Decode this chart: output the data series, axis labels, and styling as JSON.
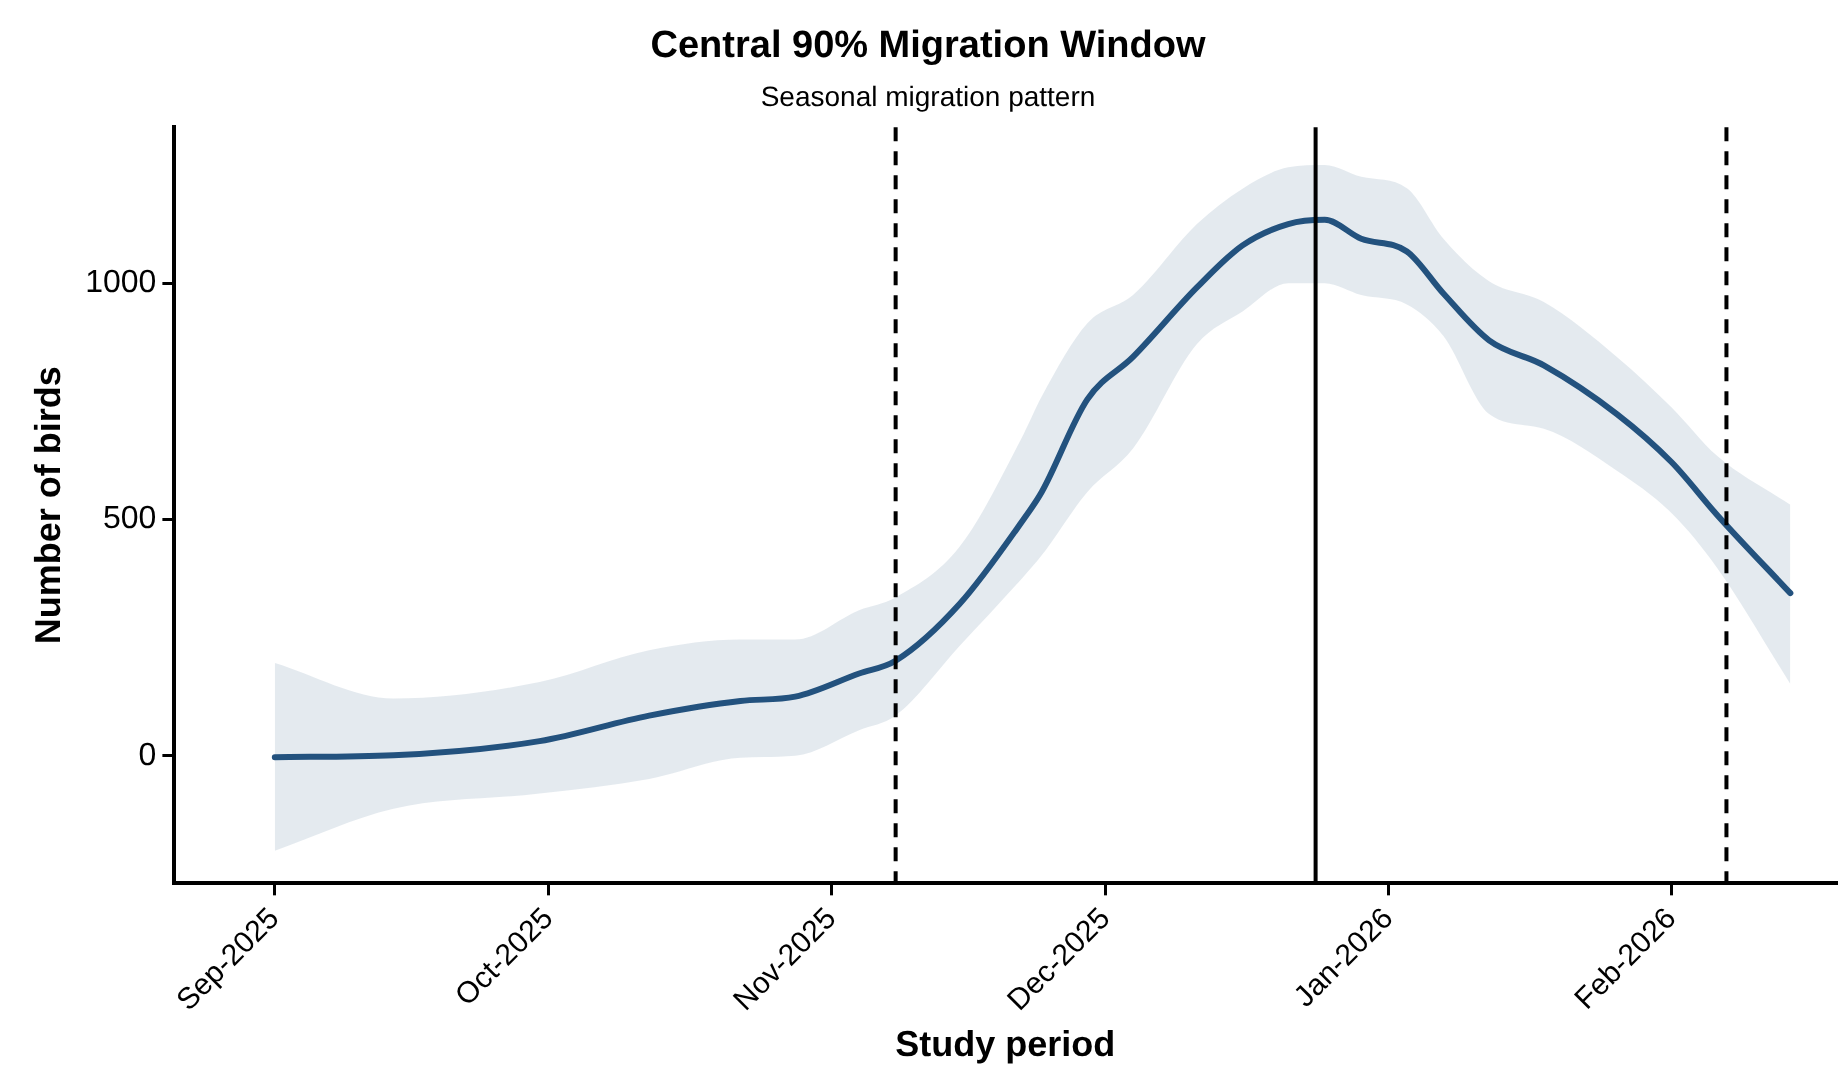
{
  "chart_data": {
    "type": "line",
    "title": "Central 90% Migration Window",
    "subtitle": "Seasonal migration pattern",
    "xlabel": "Study period",
    "ylabel": "Number of birds",
    "x": [
      "2025-09-01",
      "2025-09-14",
      "2025-09-30",
      "2025-10-12",
      "2025-10-22",
      "2025-10-28",
      "2025-11-04",
      "2025-11-08",
      "2025-11-15",
      "2025-11-22",
      "2025-11-24",
      "2025-11-29",
      "2025-12-04",
      "2025-12-11",
      "2025-12-16",
      "2025-12-21",
      "2025-12-25",
      "2025-12-29",
      "2026-01-03",
      "2026-01-07",
      "2026-01-12",
      "2026-01-18",
      "2026-01-26",
      "2026-02-01",
      "2026-02-06",
      "2026-02-14"
    ],
    "series": [
      {
        "color": "#24527f",
        "values": [
          -3,
          1,
          31,
          85,
          116,
          125,
          174,
          201,
          321,
          500,
          558,
          754,
          844,
          991,
          1080,
          1125,
          1134,
          1094,
          1067,
          978,
          879,
          826,
          723,
          621,
          509,
          344
        ],
        "lower": [
          -201,
          -112,
          -80,
          -49,
          -4,
          0,
          54,
          85,
          232,
          379,
          424,
          558,
          650,
          871,
          940,
          1000,
          1000,
          975,
          955,
          888,
          723,
          692,
          603,
          513,
          397,
          152
        ],
        "upper": [
          196,
          121,
          156,
          223,
          246,
          246,
          308,
          335,
          442,
          680,
          760,
          915,
          975,
          1125,
          1200,
          1245,
          1250,
          1225,
          1201,
          1094,
          1004,
          960,
          844,
          737,
          634,
          531
        ]
      }
    ],
    "xlim": [
      "2025-08-21",
      "2026-02-19"
    ],
    "xticks": [
      {
        "value": "2025-09-01",
        "label": "Sep-2025"
      },
      {
        "value": "2025-10-01",
        "label": "Oct-2025"
      },
      {
        "value": "2025-11-01",
        "label": "Nov-2025"
      },
      {
        "value": "2025-12-01",
        "label": "Dec-2025"
      },
      {
        "value": "2026-01-01",
        "label": "Jan-2026"
      },
      {
        "value": "2026-02-01",
        "label": "Feb-2026"
      }
    ],
    "ylim": [
      -270,
      1330
    ],
    "yticks": [
      0,
      500,
      1000
    ],
    "ref_lines": [
      {
        "axis": "x",
        "value": "2025-11-08",
        "color": "#000000",
        "line_style": "dashed"
      },
      {
        "axis": "x",
        "value": "2025-12-24",
        "color": "#000000",
        "line_style": "solid"
      },
      {
        "axis": "x",
        "value": "2026-02-07",
        "color": "#000000",
        "line_style": "dashed"
      }
    ],
    "grid": false,
    "legend": false,
    "marker": "none",
    "line_style": "solid"
  }
}
